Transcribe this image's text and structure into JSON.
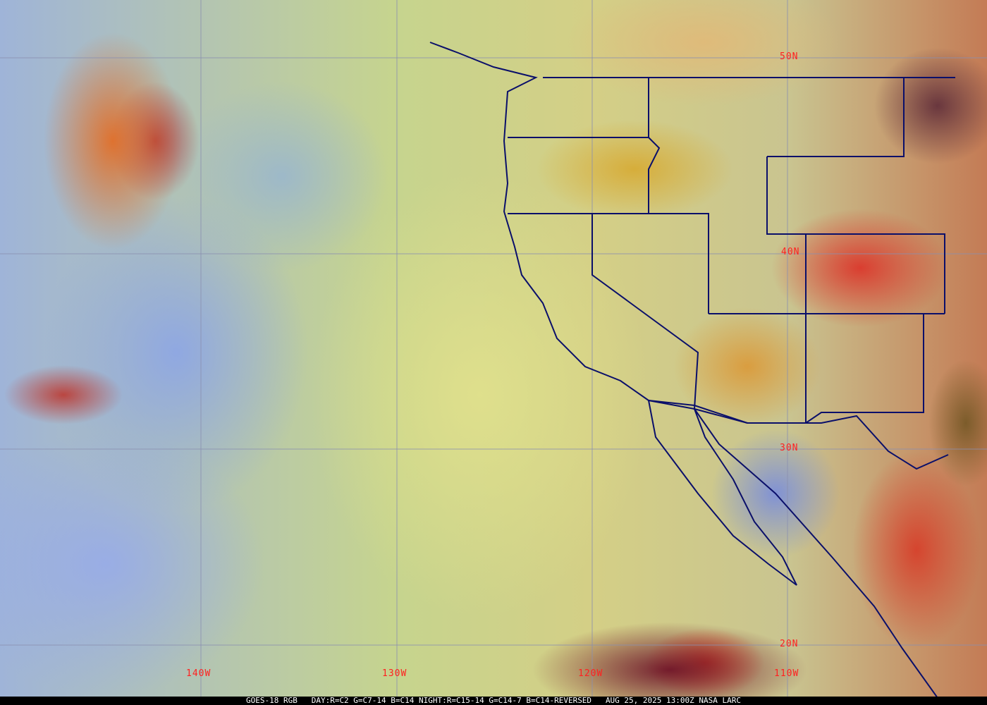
{
  "map": {
    "latitude_labels": [
      "50N",
      "40N",
      "30N",
      "20N"
    ],
    "longitude_labels": [
      "140W",
      "130W",
      "120W",
      "110W"
    ],
    "colors": {
      "grid": "#8a8fb0",
      "borders": "#0a0f6a",
      "labels": "#ff2020"
    }
  },
  "caption": {
    "satellite": "GOES-18 RGB",
    "recipe": "DAY:R=C2 G=C7-14 B=C14 NIGHT:R=C15-14 G=C14-7 B=C14-REVERSED",
    "timestamp": "AUG 25, 2025 13:00Z",
    "source": "NASA LARC"
  }
}
